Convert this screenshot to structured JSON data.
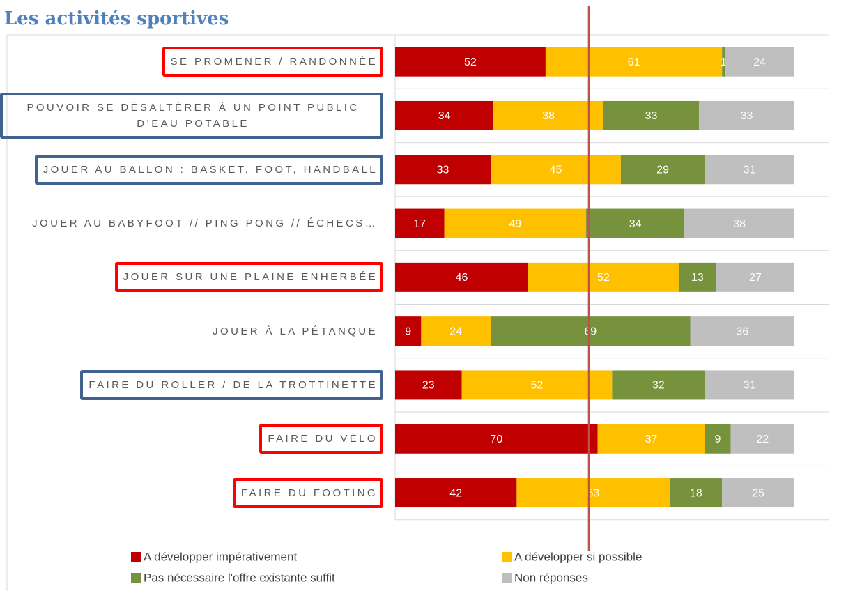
{
  "chart_data": {
    "type": "stacked-bar-horizontal",
    "title": "Les activités sportives",
    "categories": [
      "SE PROMENER / RANDONNÉE",
      "POUVOIR SE DÉSALTÉRER À UN POINT PUBLIC D’EAU POTABLE",
      "JOUER AU BALLON : BASKET, FOOT, HANDBALL",
      "JOUER AU BABYFOOT // PING PONG // ÉCHECS…",
      "JOUER SUR UNE PLAINE ENHERBÉE",
      "JOUER À LA PÉTANQUE",
      "FAIRE DU ROLLER / DE LA TROTTINETTE",
      "FAIRE DU VÉLO",
      "FAIRE DU FOOTING"
    ],
    "category_highlight": [
      "#ff0000",
      "#41628f",
      "#41628f",
      null,
      "#ff0000",
      null,
      "#41628f",
      "#ff0000",
      "#ff0000"
    ],
    "series": [
      {
        "name": "A développer impérativement",
        "color": "#c00000",
        "values": [
          52,
          34,
          33,
          17,
          46,
          9,
          23,
          70,
          42
        ]
      },
      {
        "name": "A développer si possible",
        "color": "#ffc000",
        "values": [
          61,
          38,
          45,
          49,
          52,
          24,
          52,
          37,
          53
        ]
      },
      {
        "name": "Pas nécessaire l'offre existante suffit",
        "color": "#76923c",
        "values": [
          1,
          33,
          29,
          34,
          13,
          69,
          32,
          9,
          18
        ]
      },
      {
        "name": "Non réponses",
        "color": "#bfbfbf",
        "values": [
          24,
          33,
          31,
          38,
          27,
          36,
          31,
          22,
          25
        ]
      }
    ],
    "xlim": [
      0,
      138
    ],
    "reference_line": {
      "value": 67,
      "color": "#c0504d"
    },
    "grid": true
  }
}
